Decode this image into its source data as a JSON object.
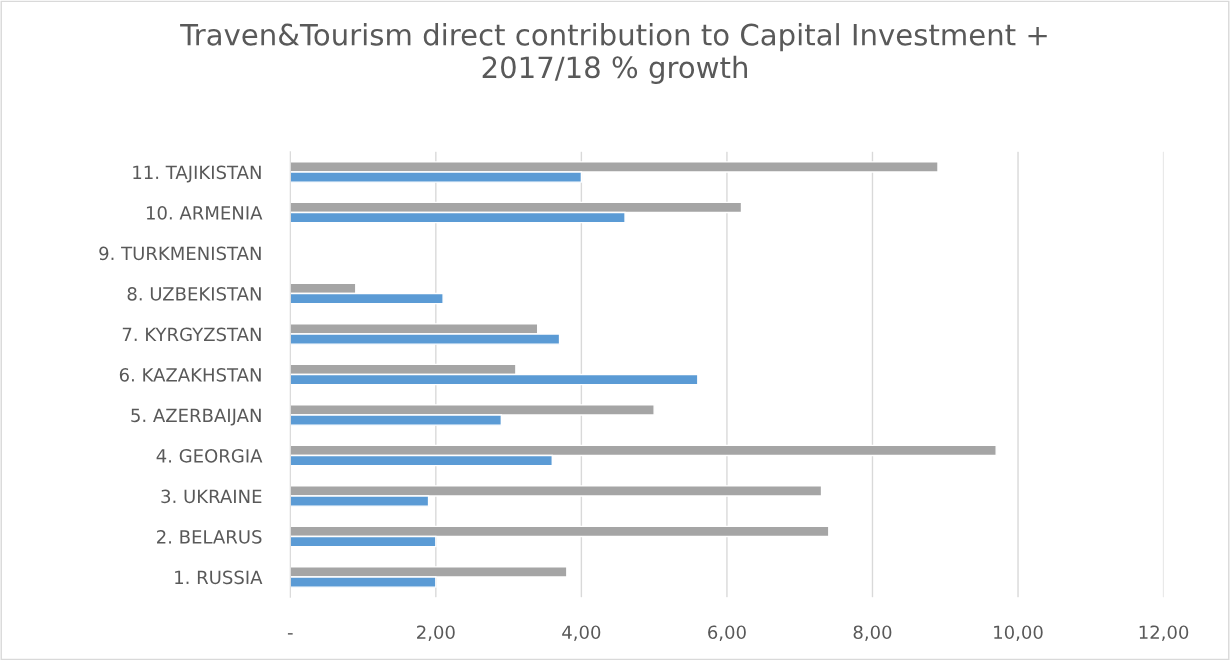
{
  "chart_data": {
    "type": "bar",
    "orientation": "horizontal",
    "title": "Traven&Tourism direct contribution to Capital Investment +\n2017/18 % growth",
    "categories": [
      "11. TAJIKISTAN",
      "10. ARMENIA",
      "9. TURKMENISTAN",
      "8. UZBEKISTAN",
      "7. KYRGYZSTAN",
      "6. KAZAKHSTAN",
      "5. AZERBAIJAN",
      "4. GEORGIA",
      "3. UKRAINE",
      "2. BELARUS",
      "1. RUSSIA"
    ],
    "series": [
      {
        "color": "#a5a5a5",
        "values": [
          8.9,
          6.2,
          null,
          0.9,
          3.4,
          3.1,
          5.0,
          9.7,
          7.3,
          7.4,
          3.8
        ]
      },
      {
        "color": "#5b9bd5",
        "values": [
          4.0,
          4.6,
          null,
          2.1,
          3.7,
          5.6,
          2.9,
          3.6,
          1.9,
          2.0,
          2.0
        ]
      }
    ],
    "xlim": [
      0,
      12
    ],
    "xticks": [
      {
        "value": 0,
        "label": "-"
      },
      {
        "value": 2,
        "label": "2,00"
      },
      {
        "value": 4,
        "label": "4,00"
      },
      {
        "value": 6,
        "label": "6,00"
      },
      {
        "value": 8,
        "label": "8,00"
      },
      {
        "value": 10,
        "label": "10,00"
      },
      {
        "value": 12,
        "label": "12,00"
      }
    ],
    "grid": "x",
    "legend": false
  }
}
